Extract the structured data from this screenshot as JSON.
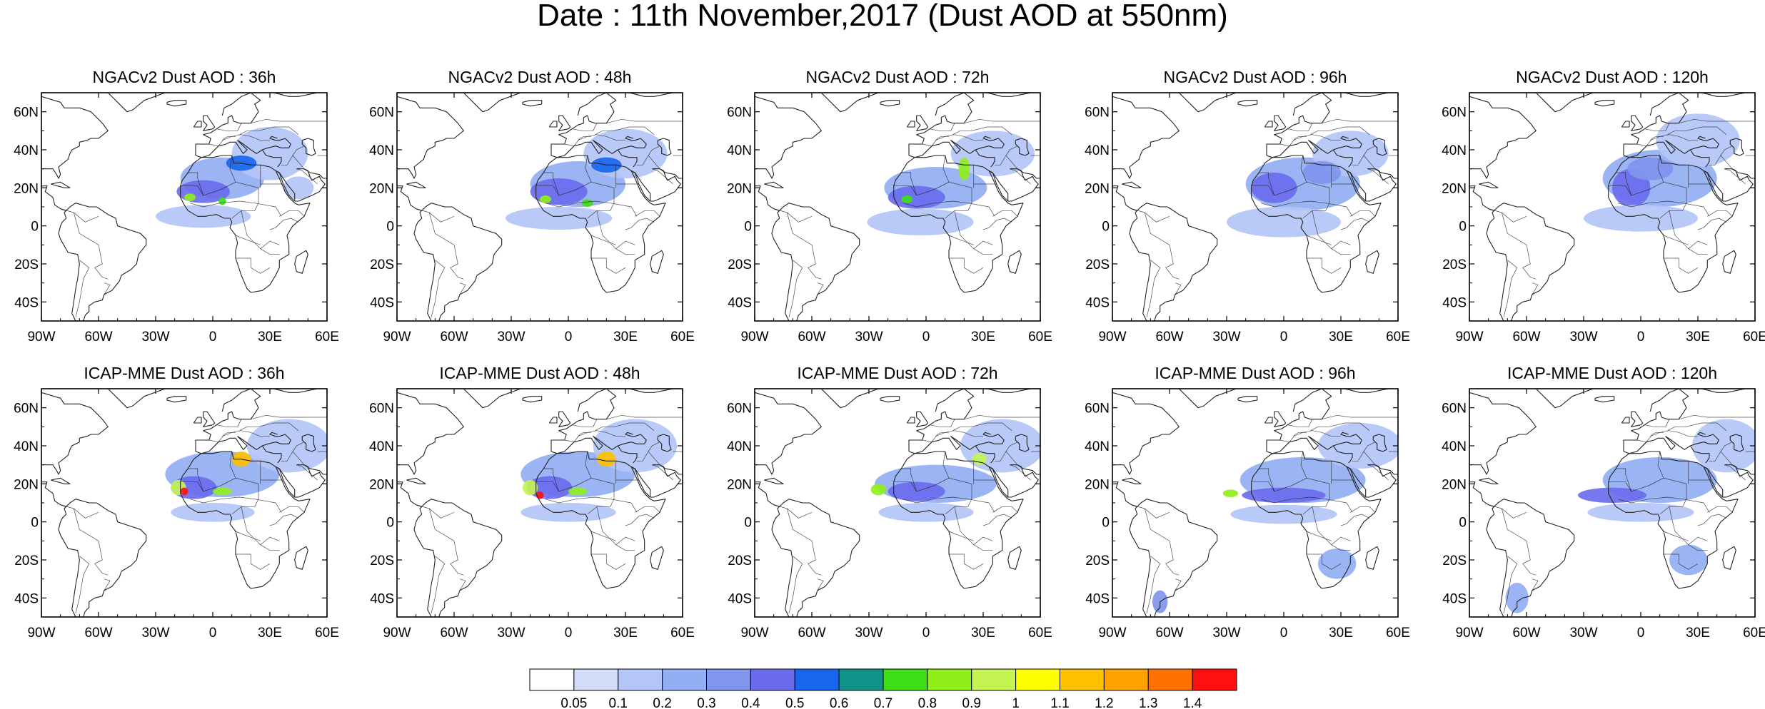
{
  "title": "Date : 11th November,2017 (Dust AOD at 550nm)",
  "lat_labels": [
    "60N",
    "40N",
    "20N",
    "0",
    "20S",
    "40S"
  ],
  "lat_values": [
    60,
    40,
    20,
    0,
    -20,
    -40
  ],
  "lon_labels": [
    "90W",
    "60W",
    "30W",
    "0",
    "30E",
    "60E"
  ],
  "lon_values": [
    -90,
    -60,
    -30,
    0,
    30,
    60
  ],
  "map_extent": {
    "lon": [
      -90,
      60
    ],
    "lat": [
      -50,
      70
    ]
  },
  "panels": [
    {
      "title": "NGACv2 Dust AOD : 36h",
      "model": "NGACv2",
      "lead": "36h",
      "plumes": [
        {
          "lon": 5,
          "lat": 25,
          "rlon": 22,
          "rlat": 11,
          "v": 0.2
        },
        {
          "lon": 30,
          "lat": 38,
          "rlon": 20,
          "rlat": 14,
          "v": 0.1
        },
        {
          "lon": -5,
          "lat": 18,
          "rlon": 14,
          "rlat": 6,
          "v": 0.4
        },
        {
          "lon": 15,
          "lat": 33,
          "rlon": 8,
          "rlat": 4,
          "v": 0.5
        },
        {
          "lon": -12,
          "lat": 15,
          "rlon": 3,
          "rlat": 2,
          "v": 0.8
        },
        {
          "lon": 5,
          "lat": 13,
          "rlon": 2,
          "rlat": 2,
          "v": 0.7
        },
        {
          "lon": -5,
          "lat": 5,
          "rlon": 25,
          "rlat": 6,
          "v": 0.1
        },
        {
          "lon": 45,
          "lat": 20,
          "rlon": 8,
          "rlat": 6,
          "v": 0.1
        }
      ]
    },
    {
      "title": "NGACv2 Dust AOD : 48h",
      "model": "NGACv2",
      "lead": "48h",
      "plumes": [
        {
          "lon": 5,
          "lat": 22,
          "rlon": 25,
          "rlat": 12,
          "v": 0.2
        },
        {
          "lon": 30,
          "lat": 38,
          "rlon": 22,
          "rlat": 13,
          "v": 0.1
        },
        {
          "lon": -5,
          "lat": 18,
          "rlon": 15,
          "rlat": 7,
          "v": 0.4
        },
        {
          "lon": 20,
          "lat": 32,
          "rlon": 8,
          "rlat": 4,
          "v": 0.5
        },
        {
          "lon": -12,
          "lat": 14,
          "rlon": 3,
          "rlat": 2,
          "v": 0.8
        },
        {
          "lon": 10,
          "lat": 12,
          "rlon": 3,
          "rlat": 2,
          "v": 0.7
        },
        {
          "lon": -5,
          "lat": 4,
          "rlon": 28,
          "rlat": 6,
          "v": 0.1
        }
      ]
    },
    {
      "title": "NGACv2 Dust AOD : 72h",
      "model": "NGACv2",
      "lead": "72h",
      "plumes": [
        {
          "lon": 5,
          "lat": 20,
          "rlon": 27,
          "rlat": 11,
          "v": 0.2
        },
        {
          "lon": 35,
          "lat": 38,
          "rlon": 22,
          "rlat": 12,
          "v": 0.1
        },
        {
          "lon": -5,
          "lat": 15,
          "rlon": 15,
          "rlat": 6,
          "v": 0.4
        },
        {
          "lon": 20,
          "lat": 30,
          "rlon": 3,
          "rlat": 6,
          "v": 0.8
        },
        {
          "lon": -10,
          "lat": 14,
          "rlon": 3,
          "rlat": 2,
          "v": 0.7
        },
        {
          "lon": -3,
          "lat": 2,
          "rlon": 28,
          "rlat": 7,
          "v": 0.1
        }
      ]
    },
    {
      "title": "NGACv2 Dust AOD : 96h",
      "model": "NGACv2",
      "lead": "96h",
      "plumes": [
        {
          "lon": 10,
          "lat": 22,
          "rlon": 30,
          "rlat": 14,
          "v": 0.2
        },
        {
          "lon": 35,
          "lat": 38,
          "rlon": 20,
          "rlat": 12,
          "v": 0.1
        },
        {
          "lon": -5,
          "lat": 20,
          "rlon": 12,
          "rlat": 8,
          "v": 0.4
        },
        {
          "lon": 20,
          "lat": 28,
          "rlon": 10,
          "rlat": 6,
          "v": 0.3
        },
        {
          "lon": 0,
          "lat": 2,
          "rlon": 30,
          "rlat": 8,
          "v": 0.1
        }
      ]
    },
    {
      "title": "NGACv2 Dust AOD : 120h",
      "model": "NGACv2",
      "lead": "120h",
      "plumes": [
        {
          "lon": 10,
          "lat": 25,
          "rlon": 30,
          "rlat": 15,
          "v": 0.2
        },
        {
          "lon": 30,
          "lat": 45,
          "rlon": 22,
          "rlat": 14,
          "v": 0.1
        },
        {
          "lon": -5,
          "lat": 20,
          "rlon": 10,
          "rlat": 10,
          "v": 0.4
        },
        {
          "lon": 5,
          "lat": 30,
          "rlon": 12,
          "rlat": 6,
          "v": 0.3
        },
        {
          "lon": 0,
          "lat": 4,
          "rlon": 30,
          "rlat": 7,
          "v": 0.1
        }
      ]
    },
    {
      "title": "ICAP-MME Dust AOD : 36h",
      "model": "ICAP-MME",
      "lead": "36h",
      "plumes": [
        {
          "lon": 5,
          "lat": 25,
          "rlon": 30,
          "rlat": 12,
          "v": 0.2
        },
        {
          "lon": 40,
          "lat": 40,
          "rlon": 22,
          "rlat": 14,
          "v": 0.1
        },
        {
          "lon": -10,
          "lat": 18,
          "rlon": 12,
          "rlat": 6,
          "v": 0.4
        },
        {
          "lon": -18,
          "lat": 18,
          "rlon": 4,
          "rlat": 4,
          "v": 0.9
        },
        {
          "lon": -15,
          "lat": 16,
          "rlon": 2,
          "rlat": 2,
          "v": 1.4
        },
        {
          "lon": 15,
          "lat": 33,
          "rlon": 5,
          "rlat": 4,
          "v": 1.1
        },
        {
          "lon": 5,
          "lat": 16,
          "rlon": 5,
          "rlat": 2,
          "v": 0.8
        },
        {
          "lon": 0,
          "lat": 5,
          "rlon": 22,
          "rlat": 5,
          "v": 0.1
        }
      ]
    },
    {
      "title": "ICAP-MME Dust AOD : 48h",
      "model": "ICAP-MME",
      "lead": "48h",
      "plumes": [
        {
          "lon": 5,
          "lat": 25,
          "rlon": 30,
          "rlat": 12,
          "v": 0.2
        },
        {
          "lon": 35,
          "lat": 40,
          "rlon": 22,
          "rlat": 14,
          "v": 0.1
        },
        {
          "lon": -10,
          "lat": 18,
          "rlon": 12,
          "rlat": 6,
          "v": 0.4
        },
        {
          "lon": -20,
          "lat": 18,
          "rlon": 4,
          "rlat": 4,
          "v": 0.9
        },
        {
          "lon": -15,
          "lat": 14,
          "rlon": 2,
          "rlat": 2,
          "v": 1.4
        },
        {
          "lon": 20,
          "lat": 33,
          "rlon": 5,
          "rlat": 4,
          "v": 1.1
        },
        {
          "lon": 5,
          "lat": 16,
          "rlon": 5,
          "rlat": 2,
          "v": 0.8
        },
        {
          "lon": 0,
          "lat": 5,
          "rlon": 25,
          "rlat": 5,
          "v": 0.1
        }
      ]
    },
    {
      "title": "ICAP-MME Dust AOD : 72h",
      "model": "ICAP-MME",
      "lead": "72h",
      "plumes": [
        {
          "lon": 5,
          "lat": 20,
          "rlon": 32,
          "rlat": 10,
          "v": 0.2
        },
        {
          "lon": 40,
          "lat": 40,
          "rlon": 22,
          "rlat": 14,
          "v": 0.1
        },
        {
          "lon": -5,
          "lat": 16,
          "rlon": 15,
          "rlat": 5,
          "v": 0.4
        },
        {
          "lon": -25,
          "lat": 17,
          "rlon": 4,
          "rlat": 3,
          "v": 0.8
        },
        {
          "lon": 28,
          "lat": 33,
          "rlon": 4,
          "rlat": 3,
          "v": 0.9
        },
        {
          "lon": 0,
          "lat": 5,
          "rlon": 25,
          "rlat": 5,
          "v": 0.1
        }
      ]
    },
    {
      "title": "ICAP-MME Dust AOD : 96h",
      "model": "ICAP-MME",
      "lead": "96h",
      "plumes": [
        {
          "lon": 10,
          "lat": 22,
          "rlon": 33,
          "rlat": 12,
          "v": 0.2
        },
        {
          "lon": 40,
          "lat": 40,
          "rlon": 22,
          "rlat": 12,
          "v": 0.1
        },
        {
          "lon": 0,
          "lat": 14,
          "rlon": 22,
          "rlat": 4,
          "v": 0.4
        },
        {
          "lon": -28,
          "lat": 15,
          "rlon": 4,
          "rlat": 2,
          "v": 0.8
        },
        {
          "lon": 28,
          "lat": -22,
          "rlon": 10,
          "rlat": 8,
          "v": 0.2
        },
        {
          "lon": -65,
          "lat": -42,
          "rlon": 4,
          "rlat": 6,
          "v": 0.3
        },
        {
          "lon": 0,
          "lat": 4,
          "rlon": 28,
          "rlat": 5,
          "v": 0.1
        }
      ]
    },
    {
      "title": "ICAP-MME Dust AOD : 120h",
      "model": "ICAP-MME",
      "lead": "120h",
      "plumes": [
        {
          "lon": 10,
          "lat": 22,
          "rlon": 30,
          "rlat": 12,
          "v": 0.2
        },
        {
          "lon": 45,
          "lat": 40,
          "rlon": 18,
          "rlat": 14,
          "v": 0.1
        },
        {
          "lon": -15,
          "lat": 14,
          "rlon": 18,
          "rlat": 4,
          "v": 0.4
        },
        {
          "lon": 25,
          "lat": -20,
          "rlon": 10,
          "rlat": 8,
          "v": 0.2
        },
        {
          "lon": -65,
          "lat": -40,
          "rlon": 6,
          "rlat": 8,
          "v": 0.2
        },
        {
          "lon": 0,
          "lat": 5,
          "rlon": 28,
          "rlat": 5,
          "v": 0.1
        }
      ]
    }
  ],
  "colorbar": {
    "labels": [
      "0.05",
      "0.1",
      "0.2",
      "0.3",
      "0.4",
      "0.5",
      "0.6",
      "0.7",
      "0.8",
      "0.9",
      "1",
      "1.1",
      "1.2",
      "1.3",
      "1.4"
    ],
    "thresholds": [
      0.05,
      0.1,
      0.2,
      0.3,
      0.4,
      0.5,
      0.6,
      0.7,
      0.8,
      0.9,
      1,
      1.1,
      1.2,
      1.3,
      1.4
    ],
    "colors": [
      "#ffffff",
      "#d3ddfa",
      "#b4c6f7",
      "#93aef3",
      "#7f95ee",
      "#6b6ced",
      "#1866ee",
      "#11938a",
      "#3dde16",
      "#90ef1b",
      "#c4f452",
      "#ffff00",
      "#ffc000",
      "#ffa200",
      "#ff7200",
      "#ff1010"
    ]
  },
  "colors": {
    "outline": "#000000",
    "coastline": "#222222"
  }
}
